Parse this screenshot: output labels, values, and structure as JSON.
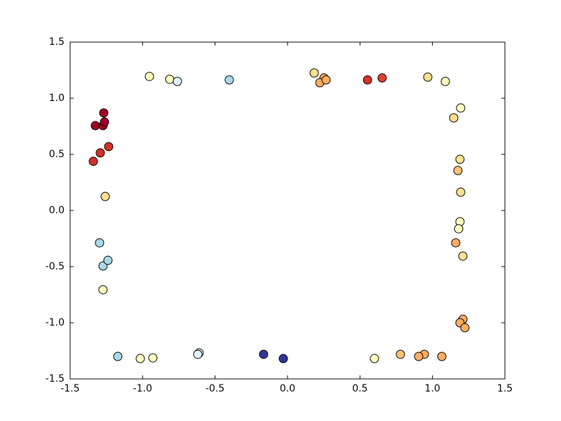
{
  "chart_data": {
    "type": "scatter",
    "x": [
      -0.953,
      -0.813,
      -0.76,
      -0.402,
      0.184,
      0.252,
      0.223,
      0.266,
      0.552,
      0.653,
      0.968,
      1.089,
      1.195,
      1.147,
      1.19,
      1.176,
      1.195,
      1.19,
      1.181,
      1.161,
      1.21,
      1.21,
      1.19,
      1.224,
      1.065,
      0.944,
      0.905,
      0.779,
      0.6,
      -0.029,
      -0.165,
      -0.61,
      -0.619,
      -0.929,
      -1.016,
      -1.171,
      -1.273,
      -1.273,
      -1.239,
      -1.297,
      -1.258,
      -1.34,
      -1.292,
      -1.234,
      -1.326,
      -1.273,
      -1.263,
      -1.268
    ],
    "values": [
      1.194,
      1.169,
      1.15,
      1.163,
      1.225,
      1.181,
      1.138,
      1.163,
      1.163,
      1.181,
      1.188,
      1.15,
      0.913,
      0.825,
      0.456,
      0.356,
      0.163,
      -0.1,
      -0.163,
      -0.288,
      -0.406,
      -0.969,
      -1.0,
      -1.044,
      -1.3,
      -1.281,
      -1.3,
      -1.281,
      -1.319,
      -1.319,
      -1.281,
      -1.269,
      -1.281,
      -1.313,
      -1.319,
      -1.3,
      -0.706,
      -0.494,
      -0.444,
      -0.288,
      0.125,
      0.438,
      0.513,
      0.569,
      0.756,
      0.756,
      0.788,
      0.869
    ],
    "colors": [
      "#ffffbf",
      "#ffffbf",
      "#e0f3f8",
      "#abd9e9",
      "#fee090",
      "#fdae61",
      "#fdae61",
      "#fdae61",
      "#d73027",
      "#e0422f",
      "#fee090",
      "#ffffbf",
      "#ffffbf",
      "#fee090",
      "#fee090",
      "#fdc272",
      "#fee090",
      "#ffffbf",
      "#ffffbf",
      "#fdae61",
      "#fee090",
      "#fdae61",
      "#fdae61",
      "#fdae61",
      "#fdae61",
      "#fdae61",
      "#fdae61",
      "#fdc272",
      "#ffffbf",
      "#313695",
      "#313695",
      "#e0f3f8",
      "#e0f3f8",
      "#ffffbf",
      "#ffffbf",
      "#abd9e9",
      "#ffffbf",
      "#abd9e9",
      "#abd9e9",
      "#abd9e9",
      "#fee090",
      "#d73027",
      "#d73027",
      "#d73027",
      "#a50026",
      "#a50026",
      "#a50026",
      "#a50026"
    ],
    "xlim": [
      -1.5,
      1.5
    ],
    "ylim": [
      -1.5,
      1.5
    ],
    "xticks": [
      -1.5,
      {
        "value": -1.0,
        "label": "-1.0"
      },
      -0.5,
      {
        "value": 0.0,
        "label": "0.0"
      },
      0.5,
      {
        "value": 1.0,
        "label": "1.0"
      },
      1.5
    ],
    "yticks": [
      -1.5,
      {
        "value": -1.0,
        "label": "-1.0"
      },
      -0.5,
      {
        "value": 0.0,
        "label": "0.0"
      },
      0.5,
      {
        "value": 1.0,
        "label": "1.0"
      },
      1.5
    ]
  }
}
